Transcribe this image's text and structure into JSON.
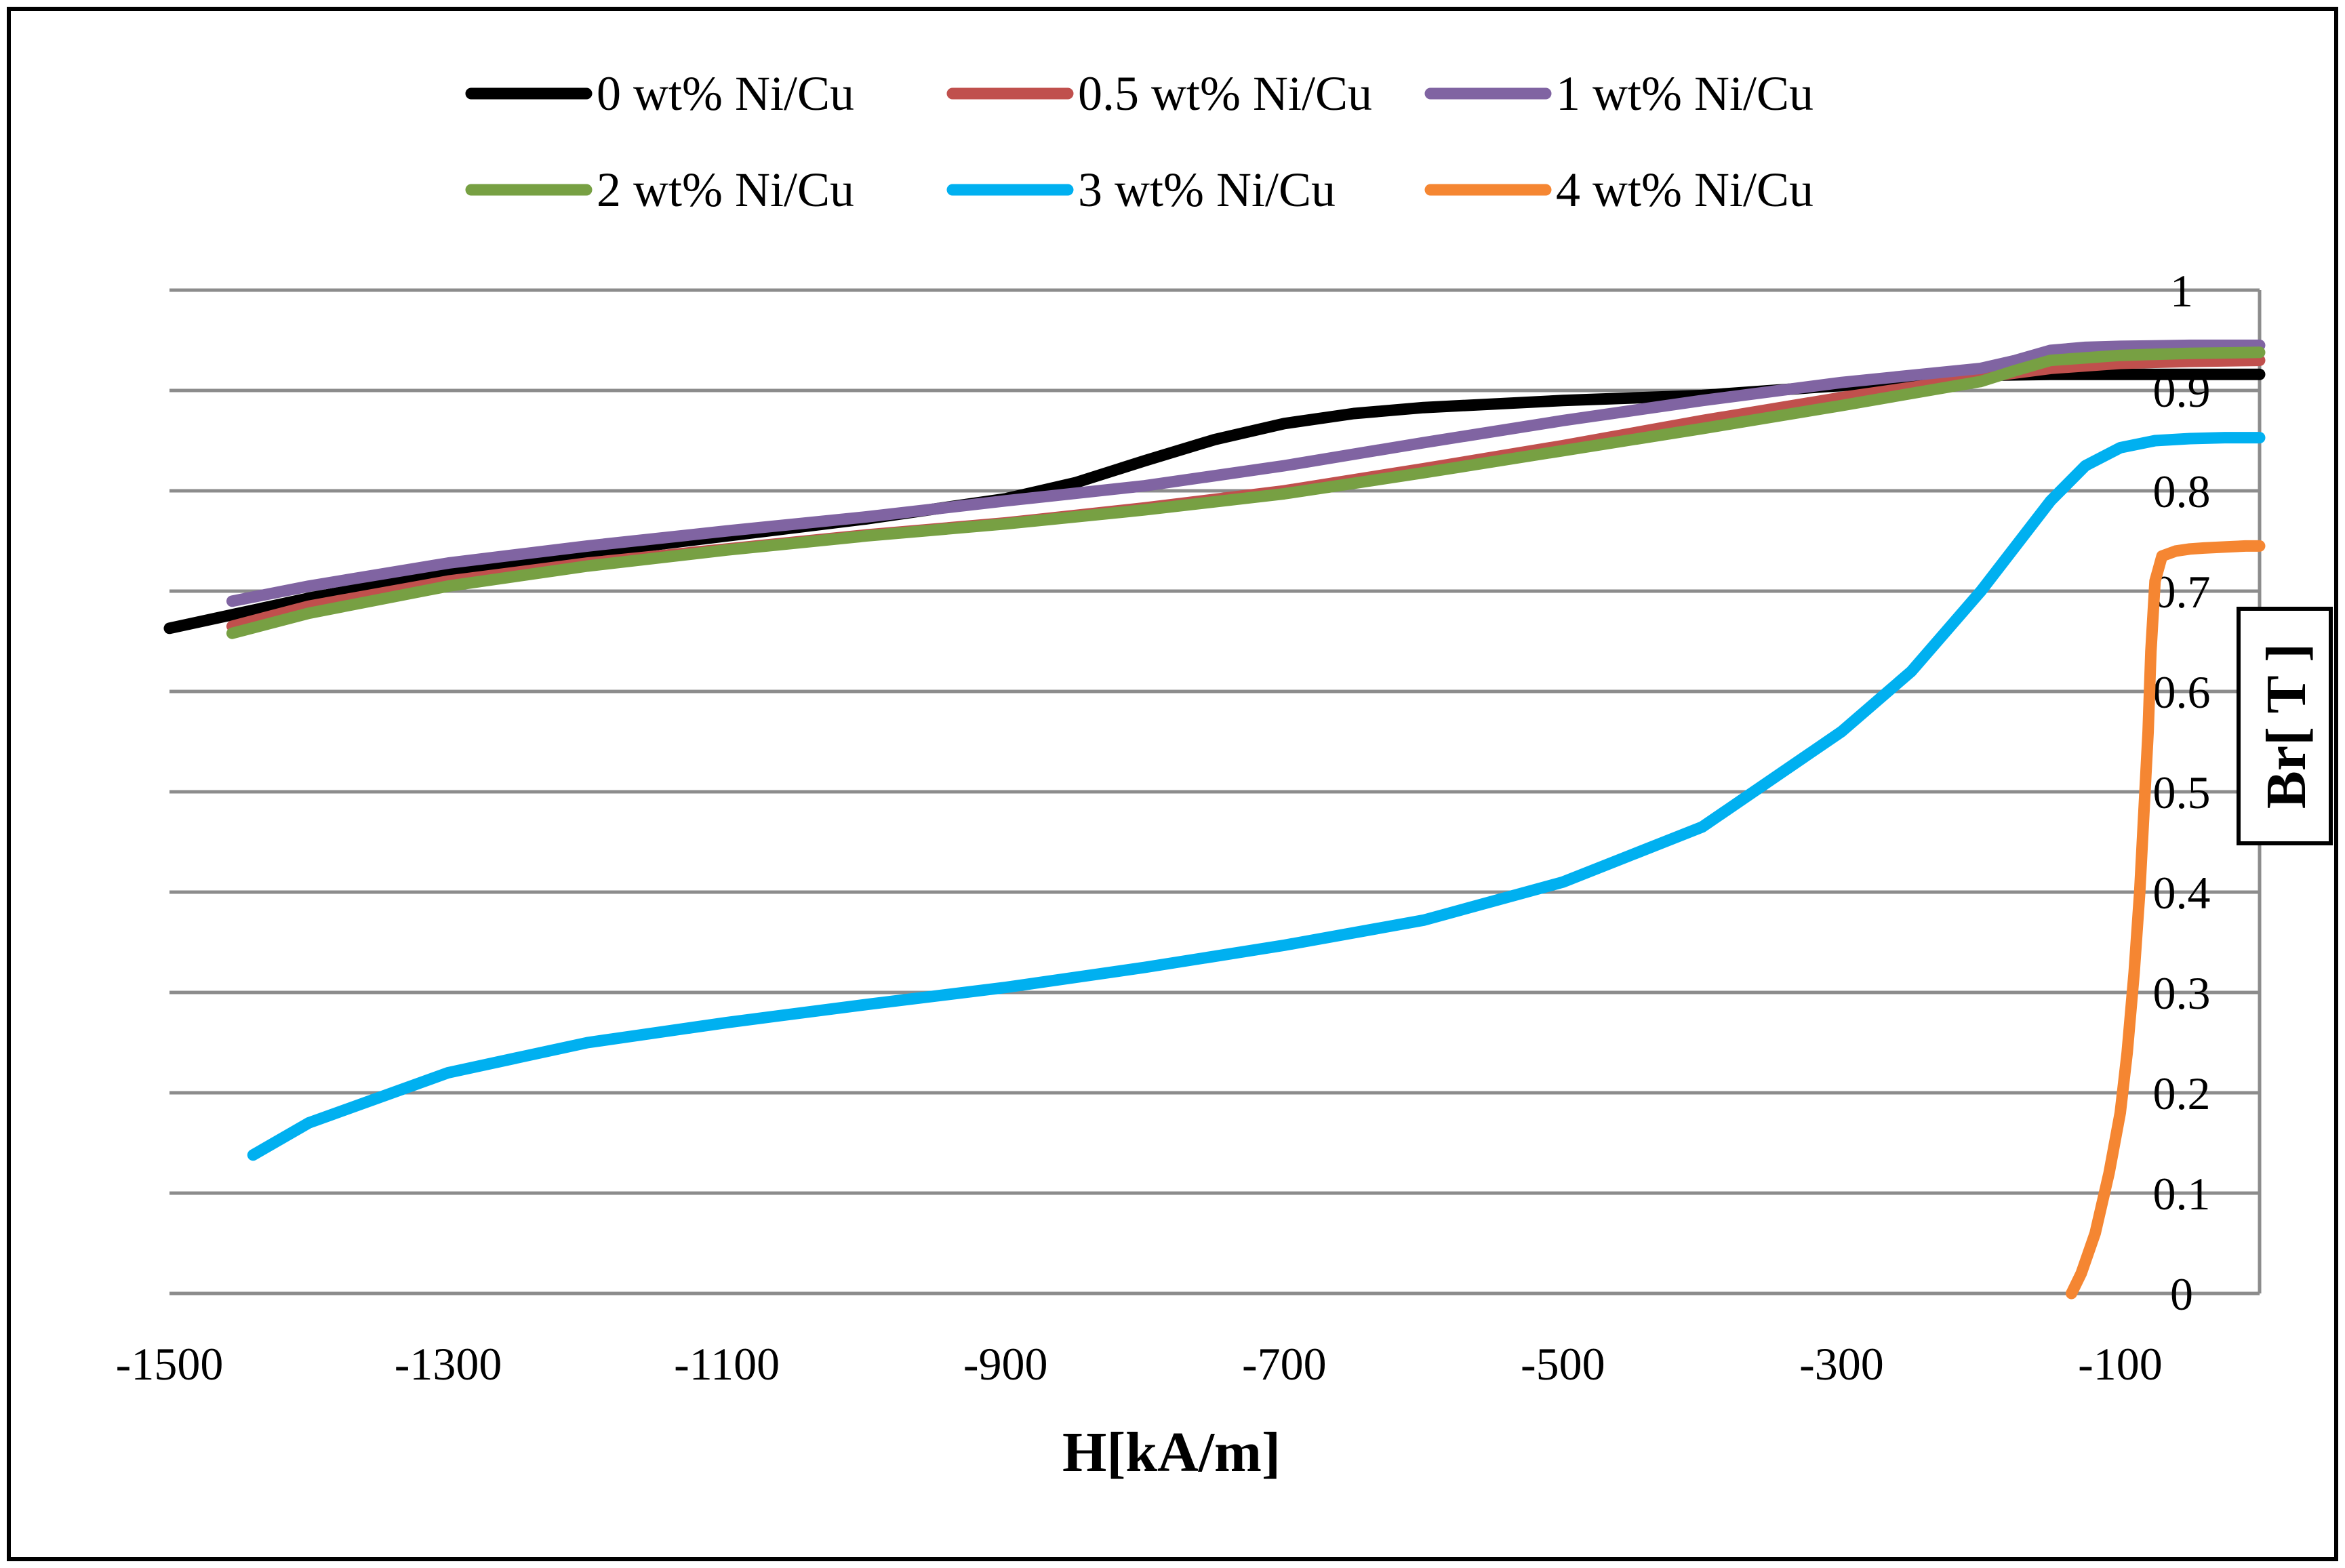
{
  "chart_data": {
    "type": "line",
    "xlabel": "H[kA/m]",
    "ylabel": "Br[ T ]",
    "xlim": [
      -1500,
      0
    ],
    "ylim": [
      0,
      1
    ],
    "x_ticks": [
      "-1500",
      "-1300",
      "-1100",
      "-900",
      "-700",
      "-500",
      "-300",
      "-100"
    ],
    "y_ticks": [
      "0",
      "0.1",
      "0.2",
      "0.3",
      "0.4",
      "0.5",
      "0.6",
      "0.7",
      "0.8",
      "0.9",
      "1"
    ],
    "grid": true,
    "legend_position": "top",
    "series": [
      {
        "name": "0 wt% Ni/Cu",
        "color": "#000000",
        "x": [
          -1500,
          -1450,
          -1400,
          -1300,
          -1200,
          -1100,
          -1000,
          -900,
          -850,
          -800,
          -750,
          -700,
          -650,
          -600,
          -500,
          -400,
          -300,
          -250,
          -200,
          -150,
          -100,
          -50,
          0
        ],
        "y": [
          0.663,
          0.678,
          0.693,
          0.718,
          0.738,
          0.755,
          0.772,
          0.792,
          0.808,
          0.83,
          0.851,
          0.867,
          0.877,
          0.883,
          0.89,
          0.895,
          0.905,
          0.91,
          0.915,
          0.916,
          0.916,
          0.916,
          0.916
        ]
      },
      {
        "name": "0.5 wt% Ni/Cu",
        "color": "#c0504d",
        "x": [
          -1455,
          -1400,
          -1300,
          -1200,
          -1100,
          -1000,
          -900,
          -800,
          -700,
          -600,
          -500,
          -400,
          -300,
          -250,
          -200,
          -150,
          -100,
          -50,
          0
        ],
        "y": [
          0.665,
          0.685,
          0.71,
          0.728,
          0.742,
          0.756,
          0.768,
          0.783,
          0.8,
          0.822,
          0.845,
          0.87,
          0.893,
          0.903,
          0.913,
          0.922,
          0.927,
          0.929,
          0.93
        ]
      },
      {
        "name": "1 wt% Ni/Cu",
        "color": "#8064a2",
        "x": [
          -1455,
          -1400,
          -1300,
          -1200,
          -1100,
          -1000,
          -900,
          -800,
          -700,
          -600,
          -500,
          -400,
          -300,
          -200,
          -175,
          -150,
          -125,
          -100,
          -50,
          0
        ],
        "y": [
          0.69,
          0.705,
          0.728,
          0.745,
          0.76,
          0.774,
          0.79,
          0.805,
          0.825,
          0.848,
          0.87,
          0.89,
          0.908,
          0.922,
          0.93,
          0.94,
          0.943,
          0.944,
          0.945,
          0.945
        ]
      },
      {
        "name": "2 wt% Ni/Cu",
        "color": "#77a043",
        "x": [
          -1455,
          -1400,
          -1300,
          -1200,
          -1100,
          -1000,
          -900,
          -800,
          -700,
          -600,
          -500,
          -400,
          -300,
          -200,
          -175,
          -150,
          -100,
          -50,
          0
        ],
        "y": [
          0.658,
          0.678,
          0.705,
          0.725,
          0.741,
          0.755,
          0.767,
          0.781,
          0.797,
          0.818,
          0.84,
          0.862,
          0.885,
          0.909,
          0.92,
          0.93,
          0.935,
          0.937,
          0.938
        ]
      },
      {
        "name": "3 wt% Ni/Cu",
        "color": "#00b0f0",
        "x": [
          -1440,
          -1400,
          -1300,
          -1200,
          -1100,
          -1000,
          -900,
          -800,
          -700,
          -600,
          -500,
          -400,
          -300,
          -250,
          -200,
          -150,
          -125,
          -100,
          -75,
          -50,
          -25,
          0
        ],
        "y": [
          0.138,
          0.17,
          0.22,
          0.25,
          0.27,
          0.288,
          0.305,
          0.325,
          0.347,
          0.372,
          0.41,
          0.465,
          0.56,
          0.62,
          0.7,
          0.79,
          0.825,
          0.843,
          0.85,
          0.852,
          0.853,
          0.853
        ]
      },
      {
        "name": "4 wt% Ni/Cu",
        "color": "#f58632",
        "x": [
          -135,
          -128,
          -118,
          -108,
          -100,
          -95,
          -90,
          -86,
          -83,
          -80,
          -78,
          -75,
          -70,
          -60,
          -50,
          -40,
          -25,
          -10,
          0
        ],
        "y": [
          0.0,
          0.02,
          0.06,
          0.12,
          0.18,
          0.24,
          0.32,
          0.4,
          0.48,
          0.56,
          0.64,
          0.71,
          0.735,
          0.74,
          0.742,
          0.743,
          0.744,
          0.745,
          0.745
        ]
      }
    ]
  }
}
